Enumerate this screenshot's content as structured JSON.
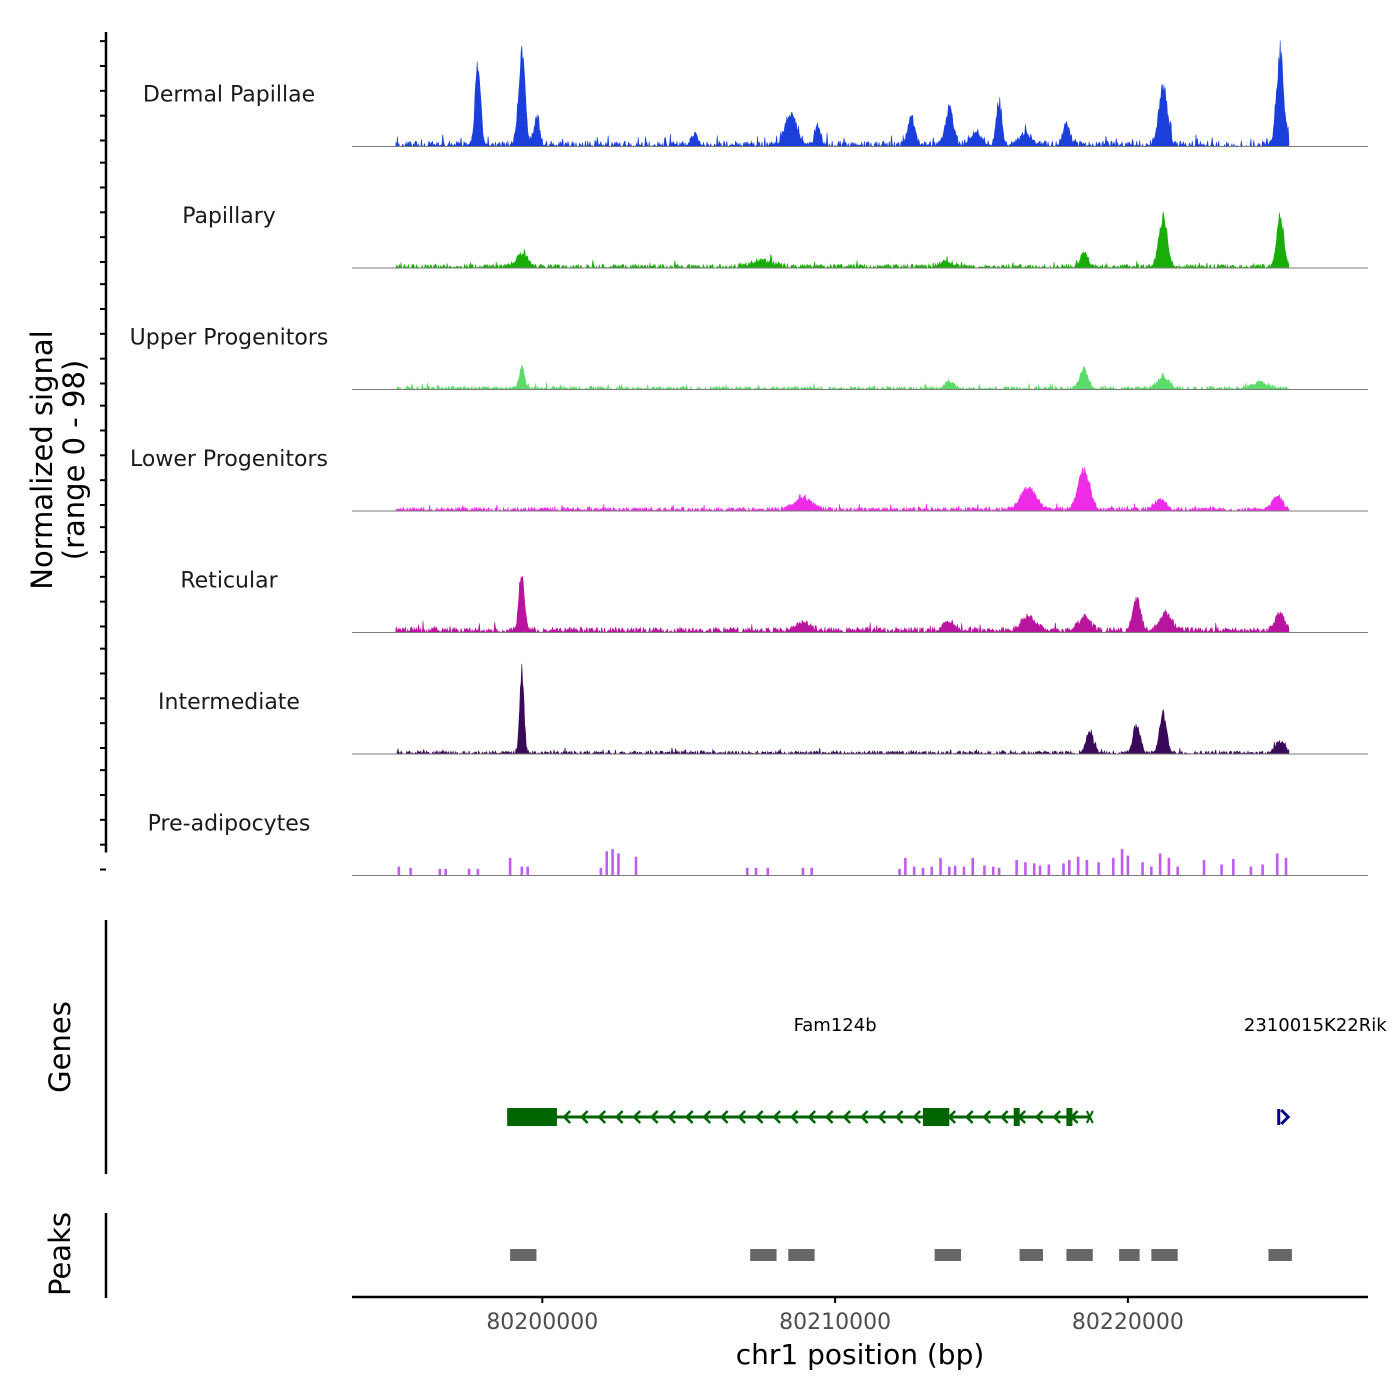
{
  "chart_data": [
    {
      "type": "area",
      "panel": "coverage",
      "ylabel_line1": "Normalized signal",
      "ylabel_line2": "(range 0 - 98)",
      "xlim": [
        80193500,
        80228200
      ],
      "signal_range": [
        0,
        98
      ],
      "tracks": [
        {
          "name": "Dermal Papillae",
          "color": "#1a3fdb",
          "mode": "area",
          "extent": [
            80195000,
            80225500
          ],
          "base": 1.5,
          "noise": 4,
          "peaks": [
            [
              80197800,
              82,
              90
            ],
            [
              80199300,
              95,
              110
            ],
            [
              80199800,
              28,
              90
            ],
            [
              80205200,
              10,
              120
            ],
            [
              80208500,
              32,
              200
            ],
            [
              80209400,
              20,
              90
            ],
            [
              80212600,
              28,
              110
            ],
            [
              80213900,
              38,
              130
            ],
            [
              80214800,
              12,
              200
            ],
            [
              80215600,
              45,
              90
            ],
            [
              80216500,
              12,
              200
            ],
            [
              80217900,
              22,
              110
            ],
            [
              80221200,
              58,
              150
            ],
            [
              80225200,
              92,
              120
            ]
          ]
        },
        {
          "name": "Papillary",
          "color": "#1aad0a",
          "mode": "area",
          "extent": [
            80195000,
            80225500
          ],
          "base": 1.2,
          "noise": 2.5,
          "peaks": [
            [
              80199300,
              14,
              180
            ],
            [
              80207500,
              6,
              350
            ],
            [
              80213800,
              6,
              200
            ],
            [
              80218500,
              14,
              130
            ],
            [
              80221200,
              50,
              140
            ],
            [
              80225200,
              50,
              120
            ]
          ]
        },
        {
          "name": "Upper Progenitors",
          "color": "#5ddb6a",
          "mode": "area",
          "extent": [
            80195000,
            80225500
          ],
          "base": 1,
          "noise": 2,
          "peaks": [
            [
              80199300,
              22,
              90
            ],
            [
              80213900,
              8,
              130
            ],
            [
              80218500,
              20,
              140
            ],
            [
              80221200,
              12,
              200
            ],
            [
              80224500,
              6,
              300
            ]
          ]
        },
        {
          "name": "Lower Progenitors",
          "color": "#ee2be6",
          "mode": "area",
          "extent": [
            80195000,
            80225500
          ],
          "base": 1.5,
          "noise": 2,
          "peaks": [
            [
              80208900,
              12,
              300
            ],
            [
              80216600,
              22,
              260
            ],
            [
              80218500,
              38,
              200
            ],
            [
              80221100,
              10,
              200
            ],
            [
              80225100,
              14,
              160
            ]
          ]
        },
        {
          "name": "Reticular",
          "color": "#b8149e",
          "mode": "area",
          "extent": [
            80195000,
            80225500
          ],
          "base": 2,
          "noise": 3,
          "peaks": [
            [
              80199300,
              60,
              90
            ],
            [
              80208900,
              8,
              250
            ],
            [
              80213900,
              10,
              200
            ],
            [
              80216600,
              14,
              250
            ],
            [
              80218500,
              14,
              200
            ],
            [
              80220300,
              34,
              130
            ],
            [
              80221300,
              18,
              200
            ],
            [
              80225200,
              20,
              150
            ]
          ]
        },
        {
          "name": "Intermediate",
          "color": "#3a0a5a",
          "mode": "area",
          "extent": [
            80195000,
            80225500
          ],
          "base": 1,
          "noise": 2,
          "peaks": [
            [
              80199300,
              90,
              70
            ],
            [
              80218700,
              22,
              120
            ],
            [
              80220300,
              30,
              120
            ],
            [
              80221200,
              40,
              120
            ],
            [
              80225200,
              12,
              160
            ]
          ]
        },
        {
          "name": "Pre-adipocytes",
          "color": "#c15cf0",
          "mode": "spikes",
          "extent": [
            80195000,
            80225500
          ],
          "spikes": [
            [
              80195100,
              8
            ],
            [
              80195500,
              7
            ],
            [
              80196500,
              6
            ],
            [
              80196700,
              6
            ],
            [
              80197500,
              6
            ],
            [
              80197800,
              6
            ],
            [
              80198900,
              16
            ],
            [
              80199300,
              8
            ],
            [
              80199500,
              8
            ],
            [
              80202000,
              7
            ],
            [
              80202200,
              22
            ],
            [
              80202400,
              24
            ],
            [
              80202600,
              20
            ],
            [
              80203200,
              17
            ],
            [
              80207000,
              7
            ],
            [
              80207300,
              7
            ],
            [
              80207700,
              7
            ],
            [
              80208900,
              7
            ],
            [
              80209200,
              7
            ],
            [
              80212200,
              6
            ],
            [
              80212400,
              16
            ],
            [
              80212700,
              8
            ],
            [
              80213000,
              7
            ],
            [
              80213300,
              8
            ],
            [
              80213600,
              16
            ],
            [
              80213900,
              8
            ],
            [
              80214100,
              9
            ],
            [
              80214400,
              8
            ],
            [
              80214700,
              16
            ],
            [
              80215100,
              9
            ],
            [
              80215400,
              8
            ],
            [
              80215600,
              7
            ],
            [
              80216200,
              14
            ],
            [
              80216500,
              12
            ],
            [
              80216800,
              11
            ],
            [
              80217000,
              9
            ],
            [
              80217300,
              10
            ],
            [
              80217800,
              11
            ],
            [
              80218000,
              14
            ],
            [
              80218300,
              17
            ],
            [
              80218600,
              14
            ],
            [
              80219000,
              12
            ],
            [
              80219500,
              16
            ],
            [
              80219800,
              24
            ],
            [
              80220000,
              18
            ],
            [
              80220500,
              12
            ],
            [
              80220800,
              8
            ],
            [
              80221100,
              20
            ],
            [
              80221400,
              16
            ],
            [
              80221700,
              8
            ],
            [
              80222600,
              14
            ],
            [
              80223200,
              10
            ],
            [
              80223600,
              15
            ],
            [
              80224200,
              8
            ],
            [
              80224600,
              10
            ],
            [
              80225100,
              20
            ],
            [
              80225400,
              16
            ]
          ]
        }
      ]
    },
    {
      "type": "gene-track",
      "panel": "genes",
      "ylabel": "Genes",
      "genes": [
        {
          "name": "Fam124b",
          "strand": "-",
          "start": 80198800,
          "end": 80218700,
          "color": "#006400",
          "exons": [
            [
              80198800,
              80200500
            ],
            [
              80213000,
              80213900
            ],
            [
              80216100,
              80216300
            ],
            [
              80217900,
              80218100
            ]
          ],
          "label_pos": 80210000
        },
        {
          "name": "2310015K22Rik",
          "strand": "+",
          "start": 80225000,
          "end": 80228200,
          "color": "#00008b",
          "exons": [
            [
              80225100,
              80225200
            ]
          ],
          "label_pos": 80226400
        }
      ]
    },
    {
      "type": "range-track",
      "panel": "peaks",
      "ylabel": "Peaks",
      "color": "#666666",
      "ranges": [
        [
          80198900,
          80199800
        ],
        [
          80207100,
          80208000
        ],
        [
          80208400,
          80209300
        ],
        [
          80213400,
          80214300
        ],
        [
          80216300,
          80217100
        ],
        [
          80217900,
          80218800
        ],
        [
          80219700,
          80220400
        ],
        [
          80220800,
          80221700
        ],
        [
          80224800,
          80225600
        ]
      ],
      "xlabel": "chr1 position (bp)",
      "xticks": [
        80200000,
        80210000,
        80220000
      ],
      "xtick_labels": [
        "80200000",
        "80210000",
        "80220000"
      ]
    }
  ]
}
